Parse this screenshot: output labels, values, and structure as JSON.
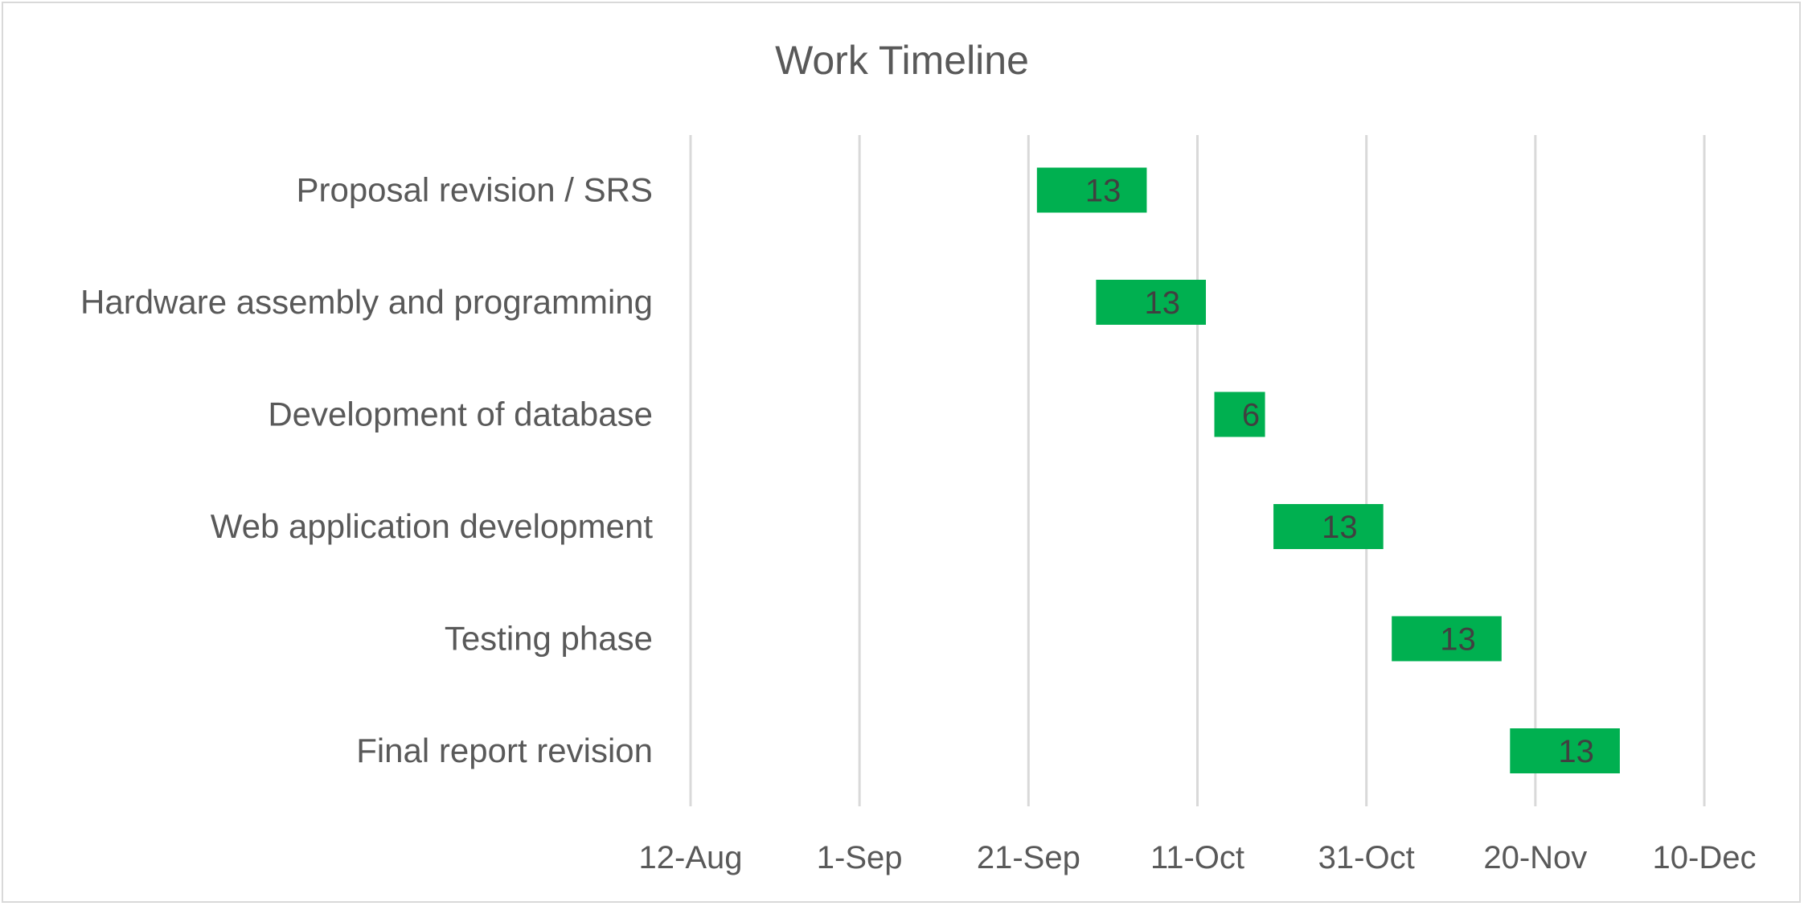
{
  "chart_data": {
    "type": "bar",
    "orientation": "horizontal",
    "stacked_offset_gantt": true,
    "title": "Work Timeline",
    "xlabel": "",
    "ylabel": "",
    "grid": "vertical",
    "legend": "none",
    "bar_color": "#00b050",
    "xlim": [
      "2019-08-12",
      "2019-12-10"
    ],
    "x_ticks": [
      "12-Aug",
      "1-Sep",
      "21-Sep",
      "11-Oct",
      "31-Oct",
      "20-Nov",
      "10-Dec"
    ],
    "x_tick_dates": [
      "2019-08-12",
      "2019-09-01",
      "2019-09-21",
      "2019-10-11",
      "2019-10-31",
      "2019-11-20",
      "2019-12-10"
    ],
    "categories": [
      "Proposal revision / SRS",
      "Hardware assembly and programming",
      "Development of database",
      "Web application development",
      "Testing phase",
      "Final report revision"
    ],
    "tasks": [
      {
        "name": "Proposal revision / SRS",
        "start": "2019-09-22",
        "duration": 13,
        "label": "13"
      },
      {
        "name": "Hardware assembly and programming",
        "start": "2019-09-29",
        "duration": 13,
        "label": "13"
      },
      {
        "name": "Development of database",
        "start": "2019-10-13",
        "duration": 6,
        "label": "6"
      },
      {
        "name": "Web application development",
        "start": "2019-10-20",
        "duration": 13,
        "label": "13"
      },
      {
        "name": "Testing phase",
        "start": "2019-11-03",
        "duration": 13,
        "label": "13"
      },
      {
        "name": "Final report revision",
        "start": "2019-11-17",
        "duration": 13,
        "label": "13"
      }
    ]
  }
}
